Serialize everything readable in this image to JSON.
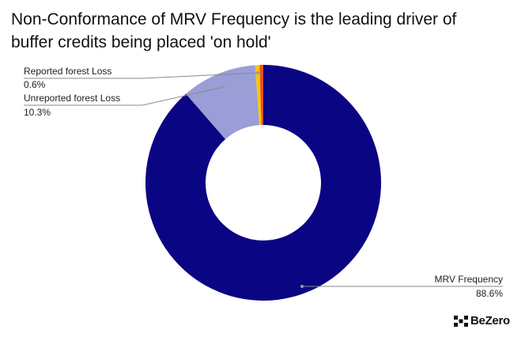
{
  "title_line1": "Non-Conformance of MRV Frequency is the leading driver of",
  "title_line2": "buffer credits being placed 'on hold'",
  "chart_data": {
    "type": "pie",
    "donut": true,
    "slices": [
      {
        "label": "MRV Frequency",
        "value": 88.6,
        "value_label": "88.6%",
        "color": "#0a0582"
      },
      {
        "label": "Unreported forest Loss",
        "value": 10.3,
        "value_label": "10.3%",
        "color": "#9a9dd6"
      },
      {
        "label": "Reported forest Loss",
        "value": 0.6,
        "value_label": "0.6%",
        "color": "#f5c518"
      },
      {
        "label": "",
        "value": 0.5,
        "value_label": "",
        "color": "#e8501e"
      }
    ]
  },
  "logo": {
    "text": "BeZero"
  }
}
